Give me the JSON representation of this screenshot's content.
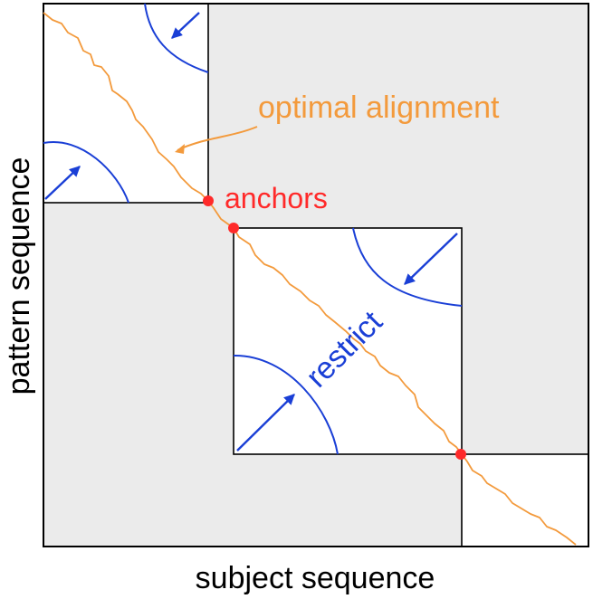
{
  "labels": {
    "optimal_alignment": "optimal alignment",
    "anchors": "anchors",
    "restrict": "restrict",
    "x_axis": "subject sequence",
    "y_axis": "pattern sequence"
  },
  "colors": {
    "background": "#ffffff",
    "shaded_region": "#ebebeb",
    "border": "#000000",
    "alignment_path": "#f39a3c",
    "restrict_arrows": "#1a3fd6",
    "anchor_dots": "#ff2a2a",
    "anchor_label": "#ff2a2a",
    "restrict_label": "#1a3fd6"
  }
}
